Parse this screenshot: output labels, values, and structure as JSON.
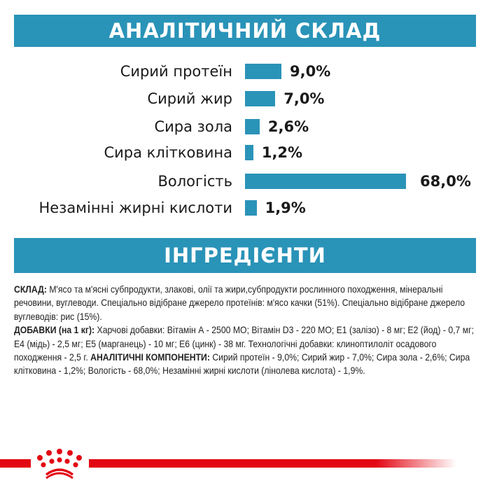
{
  "colors": {
    "accent": "#2a93b8",
    "brand_red": "#e30613"
  },
  "chart_data": {
    "type": "bar",
    "orientation": "horizontal",
    "title": "АНАЛІТИЧНИЙ СКЛАД",
    "categories": [
      "Сирий протеїн",
      "Сирий жир",
      "Сира зола",
      "Сира клітковина",
      "Вологість",
      "Незамінні жирні кислоти"
    ],
    "values": [
      9.0,
      7.0,
      2.6,
      1.2,
      68.0,
      1.9
    ],
    "labels": [
      "9,0%",
      "7,0%",
      "2,6%",
      "1,2%",
      "68,0%",
      "1,9%"
    ],
    "unit": "%"
  },
  "ingredients": {
    "title": "ІНГРЕДІЄНТИ",
    "composition_label": "СКЛАД:",
    "composition": " М'ясо та м'ясні субпродукти, злакові, олії та жири,субпродукти рослинного походження, мінеральні речовини, вуглеводи. Спеціально відібране джерело протеїнів: м'ясо качки (51%). Спеціально відібране джерело вуглеводів: рис (15%).",
    "additives_label": "ДОБАВКИ (на 1 кг):",
    "additives": " Харчові добавки: Вітамін А - 2500 МО; Вітамін D3 - 220 МО; Е1 (залізо) - 8 мг; Е2 (йод) - 0,7 мг; Е4 (мідь) - 2,5 мг; Е5 (марганець) - 10 мг; Е6 (цинк) - 38 мг. Технологічні добавки: клиноптилоліт осадового походження - 2,5 г. ",
    "analytical_label": "АНАЛІТИЧНІ КОМПОНЕНТИ:",
    "analytical": " Сирий протеїн - 9,0%; Сирий жир - 7,0%; Сира зола - 2,6%; Сира клітковина - 1,2%; Вологість - 68,0%; Незамінні жирні кислоти (лінолева кислота) - 1,9%."
  },
  "logo": {
    "icon": "royal-canin-crown-icon"
  }
}
